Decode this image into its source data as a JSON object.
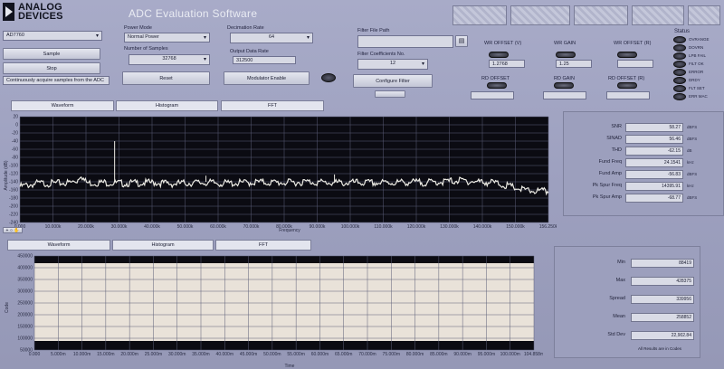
{
  "header": {
    "logo": "ANALOG DEVICES",
    "logo_line1": "ANALOG",
    "logo_line2": "DEVICES",
    "title": "ADC Evaluation Software"
  },
  "controls": {
    "device": "AD7760",
    "sample_button": "Sample",
    "stop_button": "Stop",
    "status_text": "Continuously acquire samples from the ADC",
    "power_mode_label": "Power Mode",
    "power_mode": "Normal Power",
    "num_samples_label": "Number of Samples",
    "num_samples": "32768",
    "reset_button": "Reset",
    "decimation_label": "Decimation Rate",
    "decimation": "64",
    "output_rate_label": "Output Data Rate",
    "output_rate": "312500",
    "modulator_button": "Modulator Enable",
    "filter_path_label": "Filter File Path",
    "filter_path": "",
    "filter_coeff_label": "Filter Coefficients No.",
    "filter_coeff": "12",
    "configure_button": "Configure Filter"
  },
  "registers": {
    "labels": [
      "WR OFFSET (V)",
      "WR GAIN",
      "WR OFFSET (R)",
      "RD OFFSET",
      "RD GAIN",
      "RD OFFSET (R)"
    ],
    "values": [
      "1.2768",
      "1.25",
      "",
      "",
      "",
      ""
    ]
  },
  "status_panel": {
    "title": "Status",
    "items": [
      "OVRANGE",
      "DOVRN",
      "LPB FAIL",
      "FILT OK",
      "ERROR",
      "DRDY",
      "FLT SET",
      "ERR MAC"
    ]
  },
  "tabs_top": [
    "Waveform",
    "Histogram",
    "FFT"
  ],
  "tabs_bottom": [
    "Waveform",
    "Histogram",
    "FFT"
  ],
  "fft_chart": {
    "y_axis_label": "Amplitude (dB)",
    "x_axis_label": "Frequency",
    "y_ticks": [
      "20",
      "0",
      "-20",
      "-40",
      "-60",
      "-80",
      "-100",
      "-120",
      "-140",
      "-160",
      "-180",
      "-200",
      "-220",
      "-240"
    ],
    "x_ticks": [
      "0.000",
      "10.000k",
      "20.000k",
      "30.000k",
      "40.000k",
      "50.000k",
      "60.000k",
      "70.000k",
      "80.000k",
      "90.000k",
      "100.000k",
      "110.000k",
      "120.000k",
      "130.000k",
      "140.000k",
      "150.000k",
      "156.250k"
    ]
  },
  "chart_data": {
    "type": "line",
    "x": [
      0,
      5000,
      10000,
      15000,
      17000,
      18000,
      19000,
      20000,
      25000,
      30000,
      35000,
      40000,
      45000,
      50000,
      55000,
      60000,
      65000,
      70000,
      75000,
      80000,
      85000,
      90000,
      95000,
      100000,
      105000,
      110000,
      115000,
      120000,
      125000,
      130000,
      135000,
      140000,
      145000,
      150000,
      156250
    ],
    "y": [
      -150,
      -142,
      -142,
      -140,
      -135,
      -118,
      -135,
      -141,
      -140,
      -142,
      -141,
      -140,
      -143,
      -141,
      -140,
      -142,
      -141,
      -139,
      -140,
      -140,
      -138,
      -140,
      -141,
      -140,
      -141,
      -140,
      -139,
      -140,
      -138,
      -135,
      -138,
      -140,
      -150,
      -160,
      -162
    ],
    "spur_x": [
      28000,
      55000,
      93000
    ],
    "spur_y": [
      -40,
      -125,
      -122
    ],
    "xlim": [
      0,
      156250
    ],
    "ylim": [
      -240,
      20
    ]
  },
  "fft_metrics": [
    {
      "label": "SNR",
      "value": "58.27",
      "unit": "dBFS"
    },
    {
      "label": "SINAD",
      "value": "56.46",
      "unit": "dBFS"
    },
    {
      "label": "THD",
      "value": "-62.15",
      "unit": "dB"
    },
    {
      "label": "Fund Freq",
      "value": "24.1541",
      "unit": "kHz"
    },
    {
      "label": "Fund Amp",
      "value": "-56.83",
      "unit": "dBFS"
    },
    {
      "label": "Pk Spur Freq",
      "value": "14395.91",
      "unit": "kHz"
    },
    {
      "label": "Pk Spur Amp",
      "value": "-68.77",
      "unit": "dBFS"
    }
  ],
  "waveform_chart": {
    "y_axis_label": "Code",
    "x_axis_label": "Time",
    "y_ticks": [
      "450000",
      "400000",
      "350000",
      "300000",
      "250000",
      "200000",
      "150000",
      "100000",
      "50000"
    ],
    "x_ticks": [
      "0.000",
      "5.000m",
      "10.000m",
      "15.000m",
      "20.000m",
      "25.000m",
      "30.000m",
      "35.000m",
      "40.000m",
      "45.000m",
      "50.000m",
      "55.000m",
      "60.000m",
      "65.000m",
      "70.000m",
      "75.000m",
      "80.000m",
      "85.000m",
      "90.000m",
      "95.000m",
      "100.000m",
      "104.858m"
    ]
  },
  "wave_metrics": [
    {
      "label": "Min",
      "value": "88419"
    },
    {
      "label": "Max",
      "value": "428375"
    },
    {
      "label": "Spread",
      "value": "339956"
    },
    {
      "label": "Mean",
      "value": "258852"
    },
    {
      "label": "Std Dev",
      "value": "22,902.84"
    }
  ],
  "wave_footer": "All Results are in Codes"
}
